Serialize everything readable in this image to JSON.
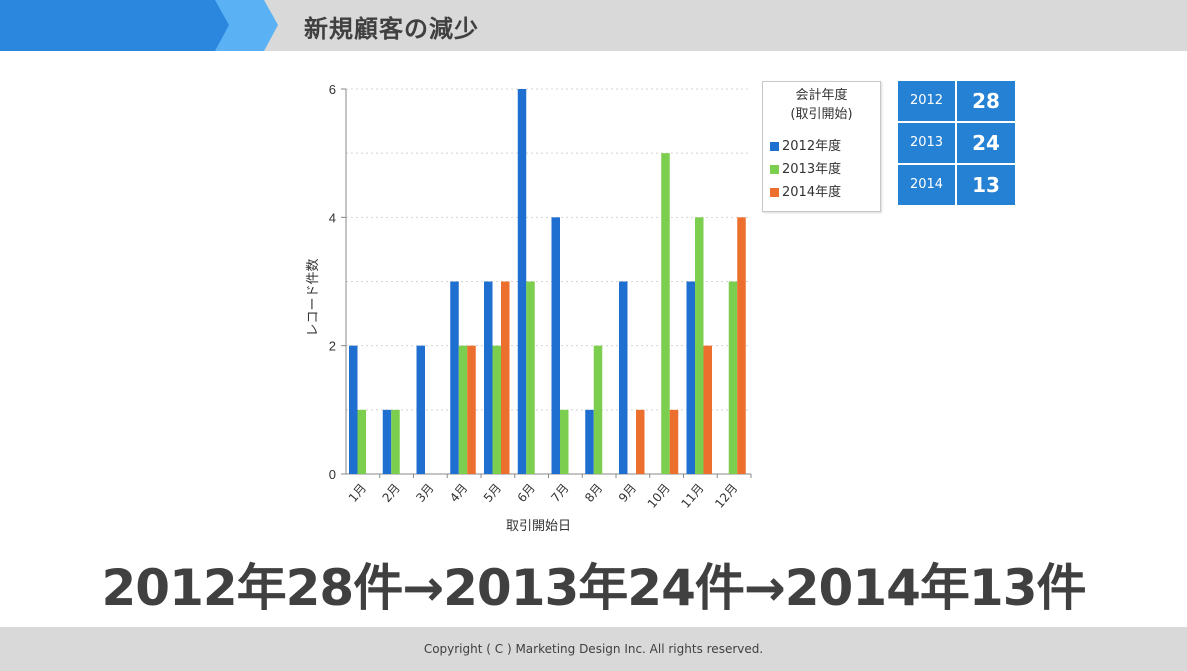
{
  "header": {
    "title": "新規顧客の減少"
  },
  "colors": {
    "s2012": "#1f6fd1",
    "s2013": "#7cce4f",
    "s2014": "#ec6f2d",
    "accent": "#2581d4"
  },
  "chart_data": {
    "type": "bar",
    "xlabel": "取引開始日",
    "ylabel": "レコード件数",
    "ylim": [
      0,
      6
    ],
    "yticks": [
      0,
      2,
      4,
      6
    ],
    "grid": true,
    "categories": [
      "1月",
      "2月",
      "3月",
      "4月",
      "5月",
      "6月",
      "7月",
      "8月",
      "9月",
      "10月",
      "11月",
      "12月"
    ],
    "series": [
      {
        "name": "2012年度",
        "values": [
          2,
          1,
          2,
          3,
          3,
          6,
          4,
          1,
          3,
          0,
          3,
          0
        ]
      },
      {
        "name": "2013年度",
        "values": [
          1,
          1,
          0,
          2,
          2,
          3,
          1,
          2,
          0,
          5,
          4,
          3
        ]
      },
      {
        "name": "2014年度",
        "values": [
          0,
          0,
          0,
          2,
          3,
          0,
          0,
          0,
          1,
          1,
          2,
          4
        ]
      }
    ],
    "legend": {
      "title": "会計年度\n(取引開始)",
      "placement": "top-right"
    }
  },
  "legend": {
    "title_line1": "会計年度",
    "title_line2": "(取引開始)",
    "items": [
      "2012年度",
      "2013年度",
      "2014年度"
    ]
  },
  "stats": [
    {
      "year": "2012",
      "count": "28"
    },
    {
      "year": "2013",
      "count": "24"
    },
    {
      "year": "2014",
      "count": "13"
    }
  ],
  "summary": "2012年28件→2013年24件→2014年13件",
  "footer": {
    "copyright": "Copyright ( C ) Marketing Design Inc. All rights reserved."
  }
}
